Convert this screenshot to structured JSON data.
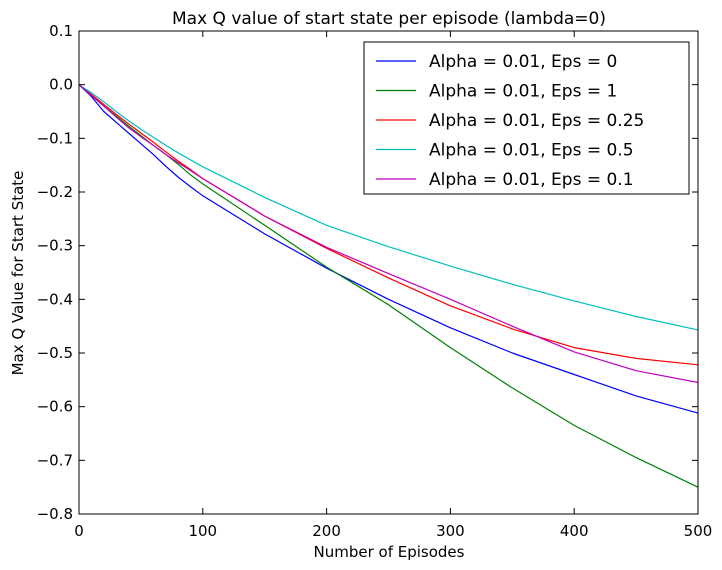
{
  "chart_data": {
    "type": "line",
    "title": "Max Q value of start state per episode (lambda=0)",
    "xlabel": "Number of Episodes",
    "ylabel": "Max Q Value for Start State",
    "xlim": [
      0,
      500
    ],
    "ylim": [
      -0.8,
      0.1
    ],
    "xticks": [
      0,
      100,
      200,
      300,
      400,
      500
    ],
    "yticks": [
      0.1,
      0.0,
      -0.1,
      -0.2,
      -0.3,
      -0.4,
      -0.5,
      -0.6,
      -0.7,
      -0.8
    ],
    "xtick_labels": [
      "0",
      "100",
      "200",
      "300",
      "400",
      "500"
    ],
    "ytick_labels": [
      "0.1",
      "0.0",
      "−0.1",
      "−0.2",
      "−0.3",
      "−0.4",
      "−0.5",
      "−0.6",
      "−0.7",
      "−0.8"
    ],
    "grid": false,
    "legend_position": "top-right",
    "x": [
      0,
      10,
      20,
      30,
      40,
      50,
      60,
      70,
      80,
      90,
      100,
      150,
      200,
      250,
      300,
      350,
      400,
      450,
      500
    ],
    "series": [
      {
        "name": "Alpha = 0.01, Eps = 0",
        "color": "#0000ff",
        "values": [
          0.0,
          -0.022,
          -0.05,
          -0.07,
          -0.09,
          -0.11,
          -0.13,
          -0.152,
          -0.172,
          -0.19,
          -0.207,
          -0.278,
          -0.342,
          -0.4,
          -0.453,
          -0.5,
          -0.54,
          -0.58,
          -0.612
        ]
      },
      {
        "name": "Alpha = 0.01, Eps = 1",
        "color": "#008000",
        "values": [
          0.0,
          -0.02,
          -0.04,
          -0.058,
          -0.077,
          -0.095,
          -0.113,
          -0.13,
          -0.148,
          -0.168,
          -0.185,
          -0.262,
          -0.34,
          -0.41,
          -0.49,
          -0.565,
          -0.635,
          -0.695,
          -0.75
        ]
      },
      {
        "name": "Alpha = 0.01, Eps = 0.25",
        "color": "#ff0000",
        "values": [
          0.0,
          -0.018,
          -0.037,
          -0.055,
          -0.073,
          -0.09,
          -0.107,
          -0.125,
          -0.142,
          -0.158,
          -0.175,
          -0.245,
          -0.305,
          -0.36,
          -0.412,
          -0.455,
          -0.49,
          -0.51,
          -0.522
        ]
      },
      {
        "name": "Alpha = 0.01, Eps = 0.5",
        "color": "#00bfbf",
        "values": [
          0.0,
          -0.015,
          -0.032,
          -0.05,
          -0.067,
          -0.083,
          -0.098,
          -0.113,
          -0.127,
          -0.14,
          -0.153,
          -0.21,
          -0.262,
          -0.302,
          -0.338,
          -0.372,
          -0.403,
          -0.432,
          -0.457
        ]
      },
      {
        "name": "Alpha = 0.01, Eps = 0.1",
        "color": "#bf00bf",
        "values": [
          0.0,
          -0.02,
          -0.04,
          -0.06,
          -0.08,
          -0.097,
          -0.113,
          -0.13,
          -0.145,
          -0.16,
          -0.175,
          -0.245,
          -0.303,
          -0.352,
          -0.4,
          -0.45,
          -0.498,
          -0.533,
          -0.555
        ]
      }
    ]
  }
}
